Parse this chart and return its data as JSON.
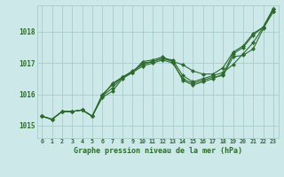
{
  "title": "Graphe pression niveau de la mer (hPa)",
  "background_color": "#cce8e8",
  "grid_color": "#aacccc",
  "line_color": "#2d6b2d",
  "xlim_min": -0.5,
  "xlim_max": 23.5,
  "ylim_min": 1014.6,
  "ylim_max": 1018.85,
  "xticks": [
    0,
    1,
    2,
    3,
    4,
    5,
    6,
    7,
    8,
    9,
    10,
    11,
    12,
    13,
    14,
    15,
    16,
    17,
    18,
    19,
    20,
    21,
    22,
    23
  ],
  "yticks": [
    1015,
    1016,
    1017,
    1018
  ],
  "series": [
    [
      1015.3,
      1015.2,
      1015.45,
      1015.45,
      1015.5,
      1015.3,
      1015.95,
      1016.35,
      1016.55,
      1016.7,
      1017.0,
      1017.05,
      1017.15,
      1017.05,
      1016.95,
      1016.75,
      1016.65,
      1016.65,
      1016.85,
      1017.35,
      1017.55,
      1017.95,
      1018.15,
      1018.65
    ],
    [
      1015.3,
      1015.2,
      1015.45,
      1015.45,
      1015.5,
      1015.3,
      1015.95,
      1016.2,
      1016.55,
      1016.75,
      1016.95,
      1017.05,
      1017.15,
      1017.1,
      1016.6,
      1016.4,
      1016.5,
      1016.6,
      1016.7,
      1016.95,
      1017.3,
      1017.65,
      1018.15,
      1018.75
    ],
    [
      1015.3,
      1015.2,
      1015.45,
      1015.45,
      1015.5,
      1015.3,
      1015.9,
      1016.1,
      1016.5,
      1016.7,
      1016.9,
      1017.0,
      1017.1,
      1017.0,
      1016.5,
      1016.35,
      1016.45,
      1016.55,
      1016.6,
      1017.2,
      1017.25,
      1017.45,
      1018.1,
      1018.65
    ],
    [
      1015.3,
      1015.2,
      1015.45,
      1015.45,
      1015.5,
      1015.3,
      1016.0,
      1016.3,
      1016.55,
      1016.7,
      1017.05,
      1017.1,
      1017.2,
      1017.05,
      1016.45,
      1016.3,
      1016.4,
      1016.5,
      1016.65,
      1017.3,
      1017.5,
      1017.9,
      1018.15,
      1018.75
    ]
  ]
}
